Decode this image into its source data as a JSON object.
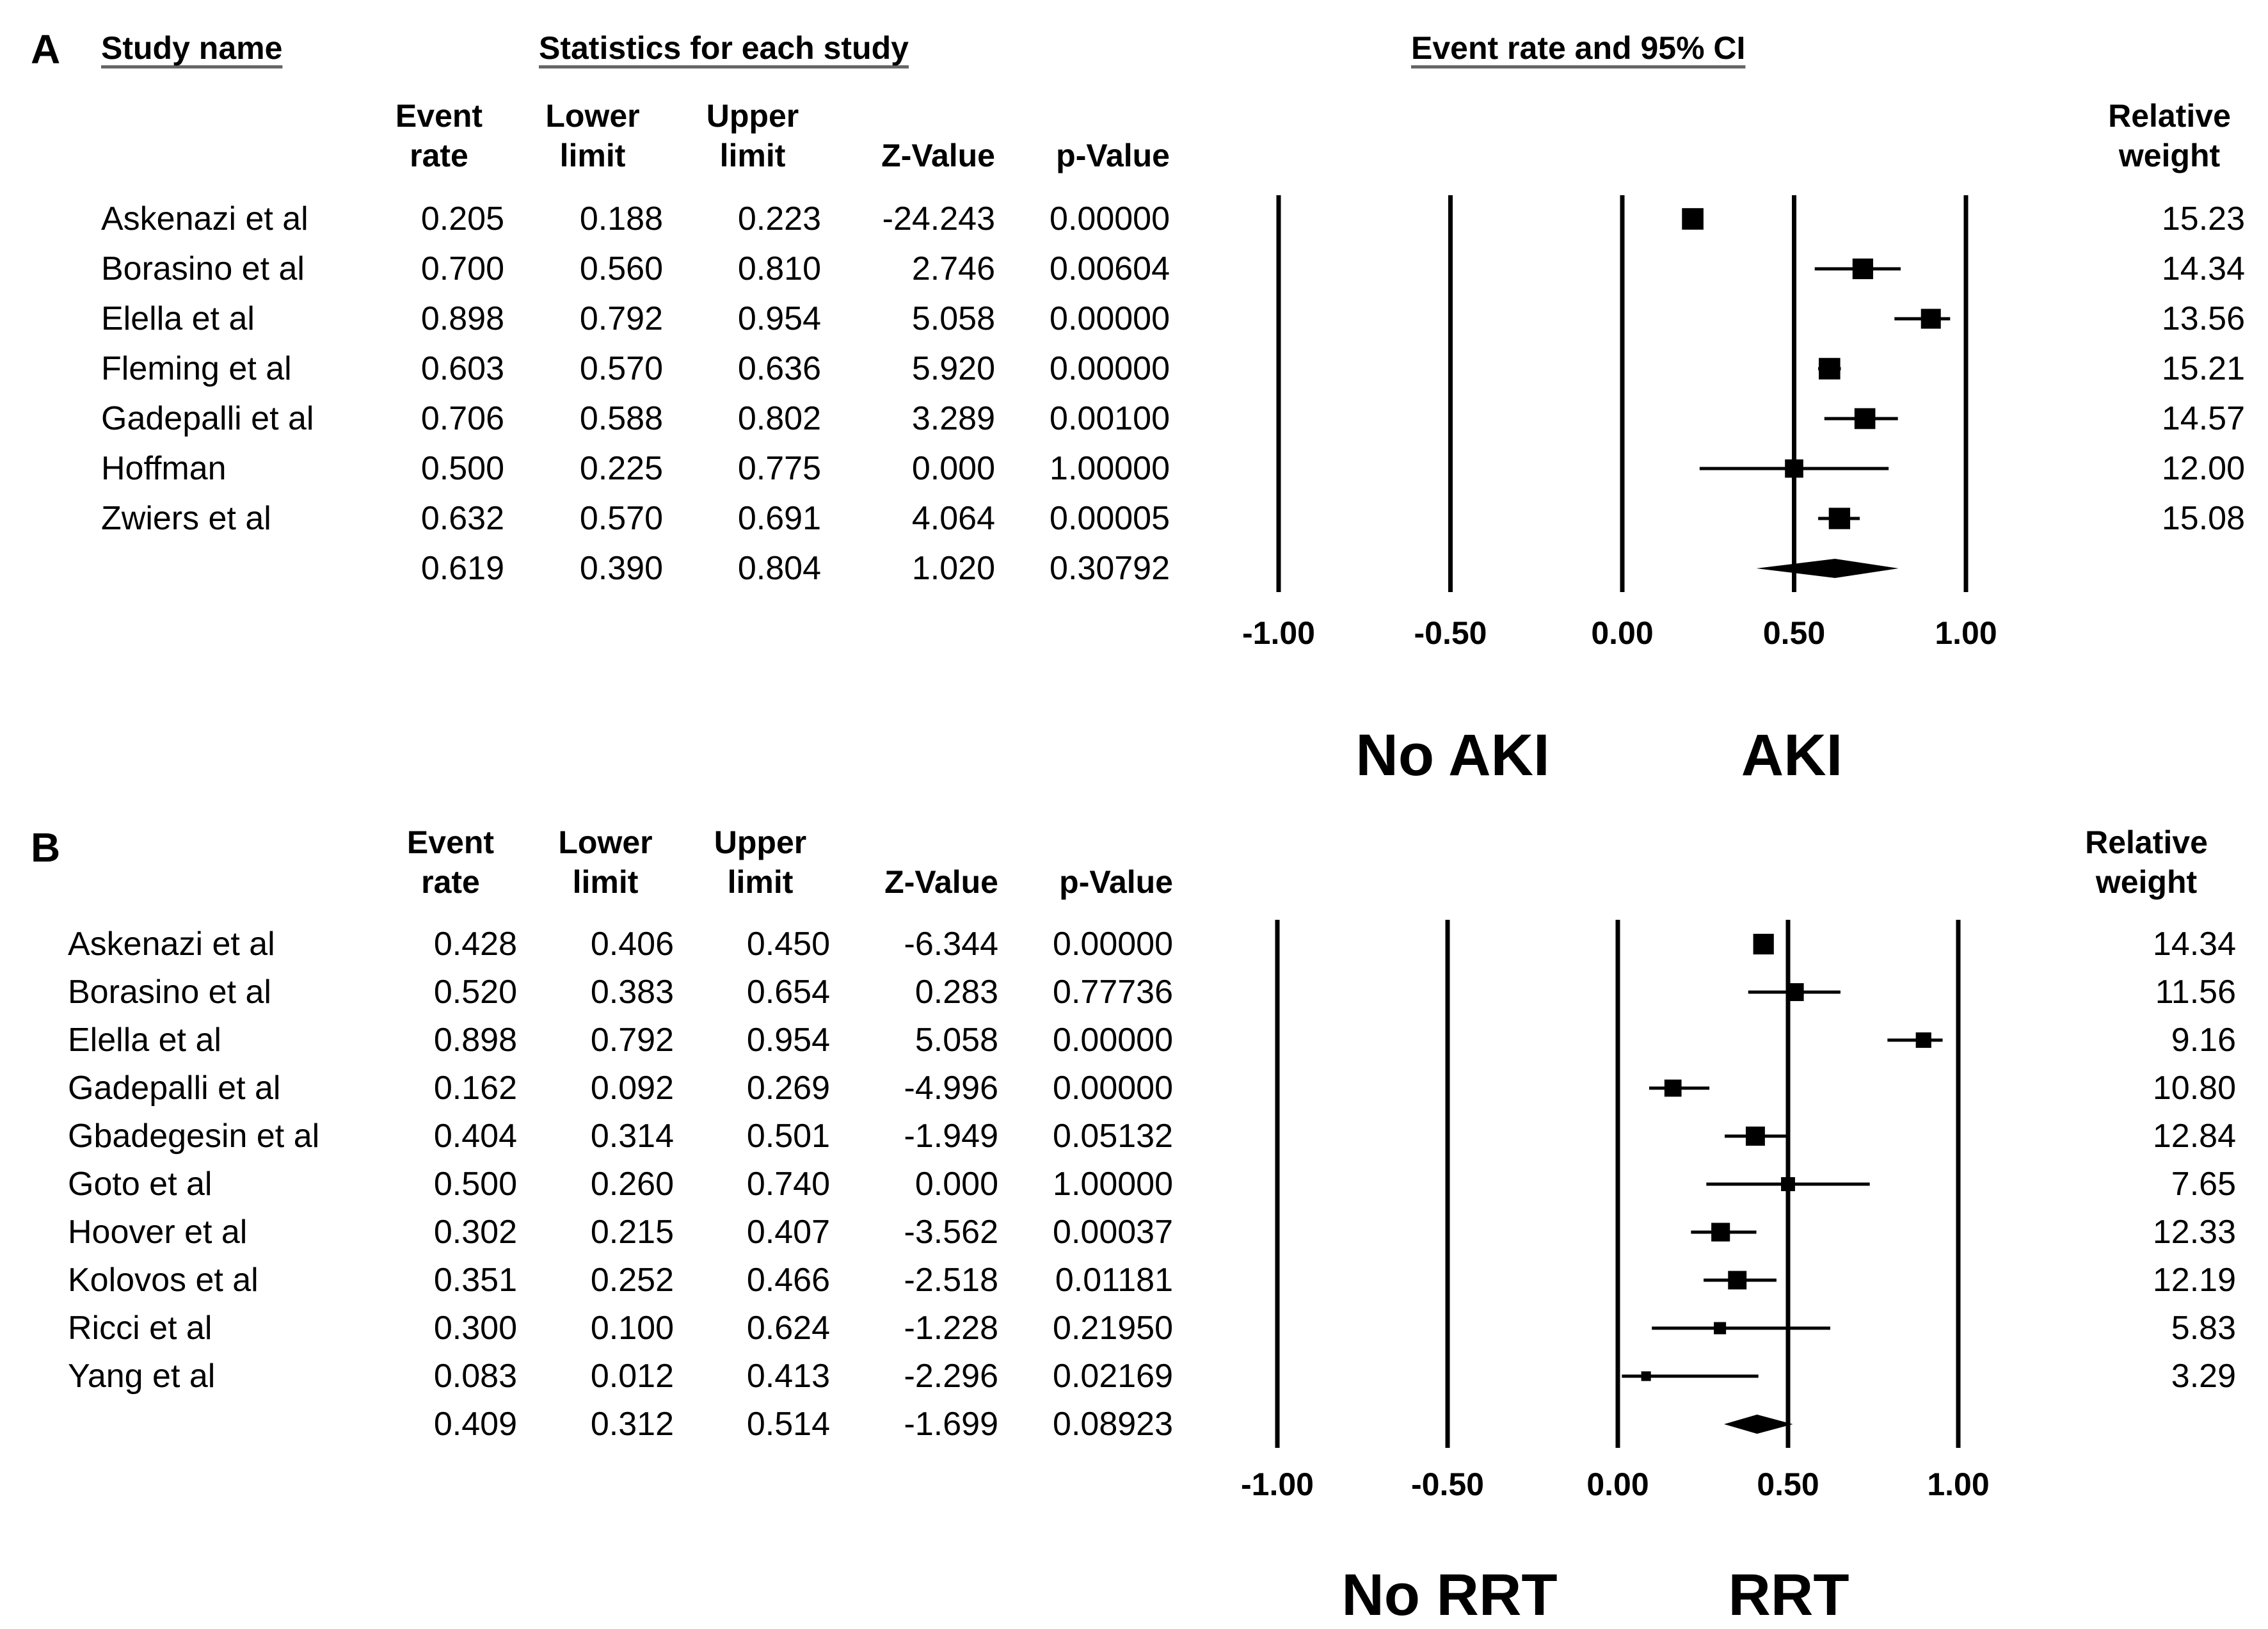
{
  "chart_data": [
    {
      "type": "forest",
      "panel_label": "A",
      "section_headers": {
        "study": "Study name",
        "stats": "Statistics for each study",
        "plot": "Event rate and 95% CI"
      },
      "columns": [
        [
          "Event",
          "rate"
        ],
        [
          "Lower",
          "limit"
        ],
        [
          "Upper",
          "limit"
        ],
        [
          "",
          "Z-Value"
        ],
        [
          "",
          "p-Value"
        ]
      ],
      "weight_header": [
        "Relative",
        "weight"
      ],
      "studies": [
        {
          "name": "Askenazi et al",
          "event_rate": 0.205,
          "lower": 0.188,
          "upper": 0.223,
          "z": "-24.243",
          "p": "0.00000",
          "weight": "15.23",
          "er": "0.205",
          "lo": "0.188",
          "up": "0.223"
        },
        {
          "name": "Borasino et al",
          "event_rate": 0.7,
          "lower": 0.56,
          "upper": 0.81,
          "z": "2.746",
          "p": "0.00604",
          "weight": "14.34",
          "er": "0.700",
          "lo": "0.560",
          "up": "0.810"
        },
        {
          "name": "Elella et al",
          "event_rate": 0.898,
          "lower": 0.792,
          "upper": 0.954,
          "z": "5.058",
          "p": "0.00000",
          "weight": "13.56",
          "er": "0.898",
          "lo": "0.792",
          "up": "0.954"
        },
        {
          "name": "Fleming et al",
          "event_rate": 0.603,
          "lower": 0.57,
          "upper": 0.636,
          "z": "5.920",
          "p": "0.00000",
          "weight": "15.21",
          "er": "0.603",
          "lo": "0.570",
          "up": "0.636"
        },
        {
          "name": "Gadepalli et al",
          "event_rate": 0.706,
          "lower": 0.588,
          "upper": 0.802,
          "z": "3.289",
          "p": "0.00100",
          "weight": "14.57",
          "er": "0.706",
          "lo": "0.588",
          "up": "0.802"
        },
        {
          "name": "Hoffman",
          "event_rate": 0.5,
          "lower": 0.225,
          "upper": 0.775,
          "z": "0.000",
          "p": "1.00000",
          "weight": "12.00",
          "er": "0.500",
          "lo": "0.225",
          "up": "0.775"
        },
        {
          "name": "Zwiers et al",
          "event_rate": 0.632,
          "lower": 0.57,
          "upper": 0.691,
          "z": "4.064",
          "p": "0.00005",
          "weight": "15.08",
          "er": "0.632",
          "lo": "0.570",
          "up": "0.691"
        }
      ],
      "summary": {
        "event_rate": 0.619,
        "lower": 0.39,
        "upper": 0.804,
        "z": "1.020",
        "p": "0.30792",
        "er": "0.619",
        "lo": "0.390",
        "up": "0.804"
      },
      "x_ticks": [
        "-1.00",
        "-0.50",
        "0.00",
        "0.50",
        "1.00"
      ],
      "x_tick_values": [
        -1,
        -0.5,
        0,
        0.5,
        1
      ],
      "xlim": [
        -1,
        1
      ],
      "direction_labels": {
        "left": "No AKI",
        "right": "AKI"
      }
    },
    {
      "type": "forest",
      "panel_label": "B",
      "columns": [
        [
          "Event",
          "rate"
        ],
        [
          "Lower",
          "limit"
        ],
        [
          "Upper",
          "limit"
        ],
        [
          "",
          "Z-Value"
        ],
        [
          "",
          "p-Value"
        ]
      ],
      "weight_header": [
        "Relative",
        "weight"
      ],
      "studies": [
        {
          "name": "Askenazi et al",
          "event_rate": 0.428,
          "lower": 0.406,
          "upper": 0.45,
          "z": "-6.344",
          "p": "0.00000",
          "weight": "14.34",
          "er": "0.428",
          "lo": "0.406",
          "up": "0.450"
        },
        {
          "name": "Borasino et al",
          "event_rate": 0.52,
          "lower": 0.383,
          "upper": 0.654,
          "z": "0.283",
          "p": "0.77736",
          "weight": "11.56",
          "er": "0.520",
          "lo": "0.383",
          "up": "0.654"
        },
        {
          "name": "Elella et al",
          "event_rate": 0.898,
          "lower": 0.792,
          "upper": 0.954,
          "z": "5.058",
          "p": "0.00000",
          "weight": "9.16",
          "er": "0.898",
          "lo": "0.792",
          "up": "0.954"
        },
        {
          "name": "Gadepalli et al",
          "event_rate": 0.162,
          "lower": 0.092,
          "upper": 0.269,
          "z": "-4.996",
          "p": "0.00000",
          "weight": "10.80",
          "er": "0.162",
          "lo": "0.092",
          "up": "0.269"
        },
        {
          "name": "Gbadegesin et al",
          "event_rate": 0.404,
          "lower": 0.314,
          "upper": 0.501,
          "z": "-1.949",
          "p": "0.05132",
          "weight": "12.84",
          "er": "0.404",
          "lo": "0.314",
          "up": "0.501"
        },
        {
          "name": "Goto et al",
          "event_rate": 0.5,
          "lower": 0.26,
          "upper": 0.74,
          "z": "0.000",
          "p": "1.00000",
          "weight": "7.65",
          "er": "0.500",
          "lo": "0.260",
          "up": "0.740"
        },
        {
          "name": "Hoover et al",
          "event_rate": 0.302,
          "lower": 0.215,
          "upper": 0.407,
          "z": "-3.562",
          "p": "0.00037",
          "weight": "12.33",
          "er": "0.302",
          "lo": "0.215",
          "up": "0.407"
        },
        {
          "name": "Kolovos et al",
          "event_rate": 0.351,
          "lower": 0.252,
          "upper": 0.466,
          "z": "-2.518",
          "p": "0.01181",
          "weight": "12.19",
          "er": "0.351",
          "lo": "0.252",
          "up": "0.466"
        },
        {
          "name": "Ricci et al",
          "event_rate": 0.3,
          "lower": 0.1,
          "upper": 0.624,
          "z": "-1.228",
          "p": "0.21950",
          "weight": "5.83",
          "er": "0.300",
          "lo": "0.100",
          "up": "0.624"
        },
        {
          "name": "Yang et al",
          "event_rate": 0.083,
          "lower": 0.012,
          "upper": 0.413,
          "z": "-2.296",
          "p": "0.02169",
          "weight": "3.29",
          "er": "0.083",
          "lo": "0.012",
          "up": "0.413"
        }
      ],
      "summary": {
        "event_rate": 0.409,
        "lower": 0.312,
        "upper": 0.514,
        "z": "-1.699",
        "p": "0.08923",
        "er": "0.409",
        "lo": "0.312",
        "up": "0.514"
      },
      "x_ticks": [
        "-1.00",
        "-0.50",
        "0.00",
        "0.50",
        "1.00"
      ],
      "x_tick_values": [
        -1,
        -0.5,
        0,
        0.5,
        1
      ],
      "xlim": [
        -1,
        1
      ],
      "direction_labels": {
        "left": "No RRT",
        "right": "RRT"
      }
    }
  ]
}
